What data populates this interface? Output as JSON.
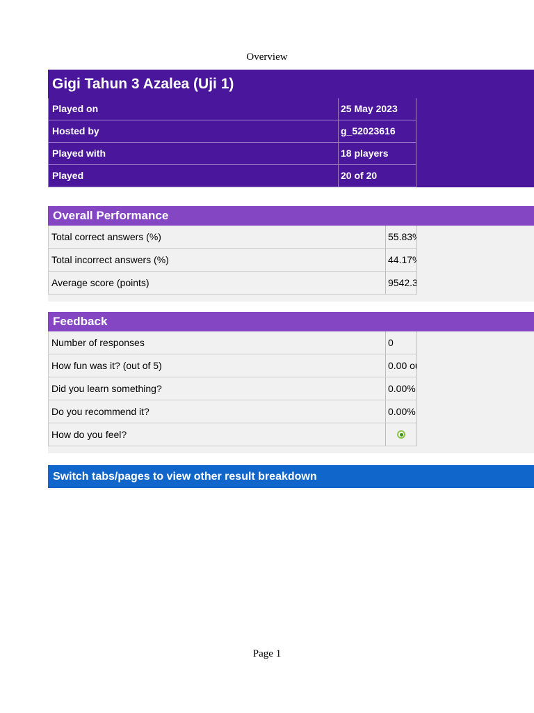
{
  "page": {
    "header": "Overview",
    "footer": "Page 1"
  },
  "report": {
    "title": "Gigi Tahun 3 Azalea (Uji 1)",
    "info_rows": [
      {
        "label": "Played on",
        "value": "25 May 2023"
      },
      {
        "label": "Hosted by",
        "value": "g_52023616"
      },
      {
        "label": "Played with",
        "value": "18 players"
      },
      {
        "label": "Played",
        "value": "20 of 20"
      }
    ],
    "sections": [
      {
        "title": "Overall Performance",
        "rows": [
          {
            "label": "Total correct answers (%)",
            "value": "55.83%"
          },
          {
            "label": "Total incorrect answers (%)",
            "value": "44.17%"
          },
          {
            "label": "Average score (points)",
            "value": "9542.3"
          }
        ]
      },
      {
        "title": "Feedback",
        "rows": [
          {
            "label": "Number of responses",
            "value": "0"
          },
          {
            "label": "How fun was it? (out of 5)",
            "value": "0.00 ou"
          },
          {
            "label": "Did you learn something?",
            "value": "0.00%"
          },
          {
            "label": "Do you recommend it?",
            "value": "0.00%"
          },
          {
            "label": "How do you feel?",
            "value": "",
            "icon": "green-radio-icon"
          }
        ]
      }
    ],
    "banner": "Switch tabs/pages to view other result breakdown"
  },
  "colors": {
    "header_purple": "#4a169c",
    "section_purple": "#8546c4",
    "banner_blue": "#1166cc",
    "row_gray": "#f1f1f1",
    "radio_green": "#3f8f1f"
  }
}
